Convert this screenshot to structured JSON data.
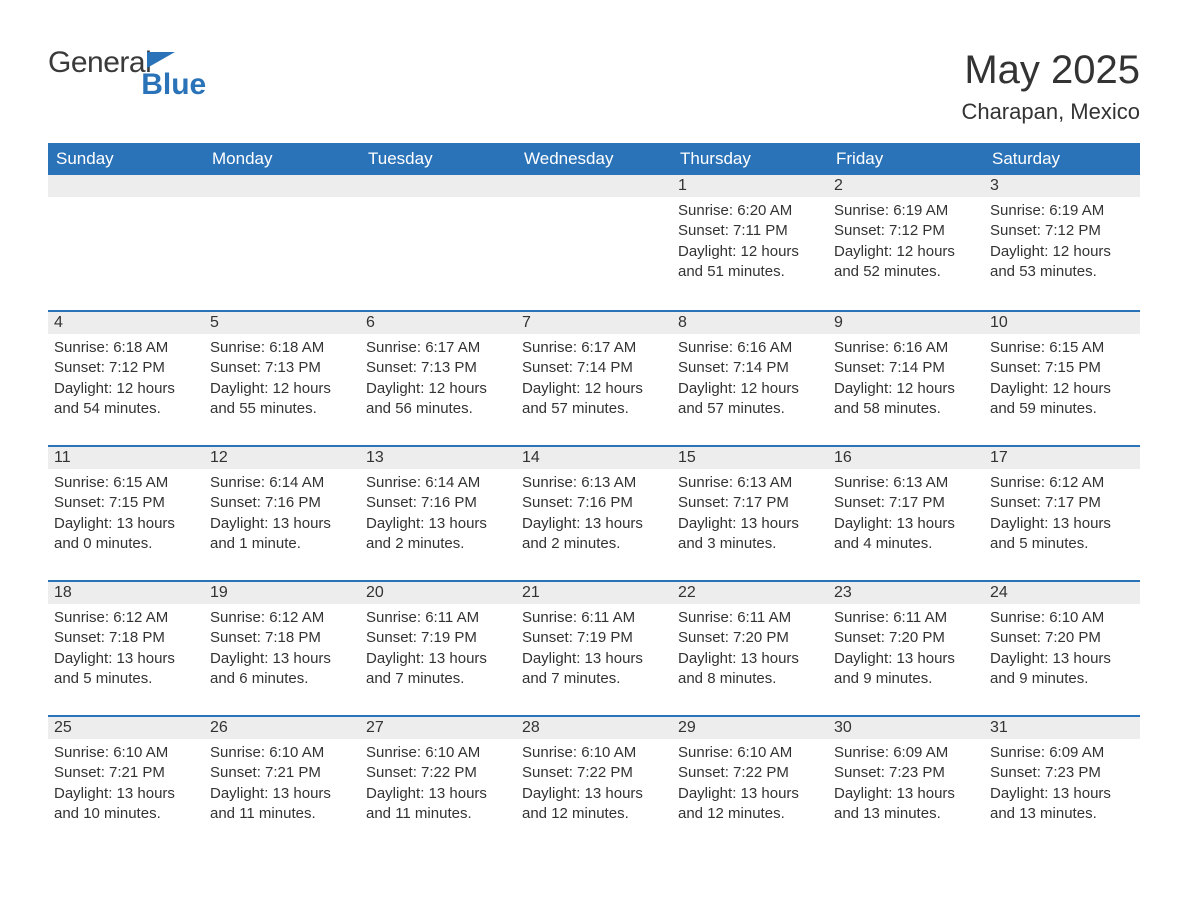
{
  "logo": {
    "general": "General",
    "blue": "Blue"
  },
  "header": {
    "month_title": "May 2025",
    "location": "Charapan, Mexico"
  },
  "colors": {
    "header_bg": "#2b73b8",
    "header_text": "#ffffff",
    "daynum_bg": "#ededed",
    "row_border": "#2b73b8",
    "text": "#333333",
    "background": "#ffffff"
  },
  "calendar": {
    "day_headers": [
      "Sunday",
      "Monday",
      "Tuesday",
      "Wednesday",
      "Thursday",
      "Friday",
      "Saturday"
    ],
    "weeks": [
      [
        {
          "empty": true
        },
        {
          "empty": true
        },
        {
          "empty": true
        },
        {
          "empty": true
        },
        {
          "day": "1",
          "sunrise": "Sunrise: 6:20 AM",
          "sunset": "Sunset: 7:11 PM",
          "daylight": "Daylight: 12 hours and 51 minutes."
        },
        {
          "day": "2",
          "sunrise": "Sunrise: 6:19 AM",
          "sunset": "Sunset: 7:12 PM",
          "daylight": "Daylight: 12 hours and 52 minutes."
        },
        {
          "day": "3",
          "sunrise": "Sunrise: 6:19 AM",
          "sunset": "Sunset: 7:12 PM",
          "daylight": "Daylight: 12 hours and 53 minutes."
        }
      ],
      [
        {
          "day": "4",
          "sunrise": "Sunrise: 6:18 AM",
          "sunset": "Sunset: 7:12 PM",
          "daylight": "Daylight: 12 hours and 54 minutes."
        },
        {
          "day": "5",
          "sunrise": "Sunrise: 6:18 AM",
          "sunset": "Sunset: 7:13 PM",
          "daylight": "Daylight: 12 hours and 55 minutes."
        },
        {
          "day": "6",
          "sunrise": "Sunrise: 6:17 AM",
          "sunset": "Sunset: 7:13 PM",
          "daylight": "Daylight: 12 hours and 56 minutes."
        },
        {
          "day": "7",
          "sunrise": "Sunrise: 6:17 AM",
          "sunset": "Sunset: 7:14 PM",
          "daylight": "Daylight: 12 hours and 57 minutes."
        },
        {
          "day": "8",
          "sunrise": "Sunrise: 6:16 AM",
          "sunset": "Sunset: 7:14 PM",
          "daylight": "Daylight: 12 hours and 57 minutes."
        },
        {
          "day": "9",
          "sunrise": "Sunrise: 6:16 AM",
          "sunset": "Sunset: 7:14 PM",
          "daylight": "Daylight: 12 hours and 58 minutes."
        },
        {
          "day": "10",
          "sunrise": "Sunrise: 6:15 AM",
          "sunset": "Sunset: 7:15 PM",
          "daylight": "Daylight: 12 hours and 59 minutes."
        }
      ],
      [
        {
          "day": "11",
          "sunrise": "Sunrise: 6:15 AM",
          "sunset": "Sunset: 7:15 PM",
          "daylight": "Daylight: 13 hours and 0 minutes."
        },
        {
          "day": "12",
          "sunrise": "Sunrise: 6:14 AM",
          "sunset": "Sunset: 7:16 PM",
          "daylight": "Daylight: 13 hours and 1 minute."
        },
        {
          "day": "13",
          "sunrise": "Sunrise: 6:14 AM",
          "sunset": "Sunset: 7:16 PM",
          "daylight": "Daylight: 13 hours and 2 minutes."
        },
        {
          "day": "14",
          "sunrise": "Sunrise: 6:13 AM",
          "sunset": "Sunset: 7:16 PM",
          "daylight": "Daylight: 13 hours and 2 minutes."
        },
        {
          "day": "15",
          "sunrise": "Sunrise: 6:13 AM",
          "sunset": "Sunset: 7:17 PM",
          "daylight": "Daylight: 13 hours and 3 minutes."
        },
        {
          "day": "16",
          "sunrise": "Sunrise: 6:13 AM",
          "sunset": "Sunset: 7:17 PM",
          "daylight": "Daylight: 13 hours and 4 minutes."
        },
        {
          "day": "17",
          "sunrise": "Sunrise: 6:12 AM",
          "sunset": "Sunset: 7:17 PM",
          "daylight": "Daylight: 13 hours and 5 minutes."
        }
      ],
      [
        {
          "day": "18",
          "sunrise": "Sunrise: 6:12 AM",
          "sunset": "Sunset: 7:18 PM",
          "daylight": "Daylight: 13 hours and 5 minutes."
        },
        {
          "day": "19",
          "sunrise": "Sunrise: 6:12 AM",
          "sunset": "Sunset: 7:18 PM",
          "daylight": "Daylight: 13 hours and 6 minutes."
        },
        {
          "day": "20",
          "sunrise": "Sunrise: 6:11 AM",
          "sunset": "Sunset: 7:19 PM",
          "daylight": "Daylight: 13 hours and 7 minutes."
        },
        {
          "day": "21",
          "sunrise": "Sunrise: 6:11 AM",
          "sunset": "Sunset: 7:19 PM",
          "daylight": "Daylight: 13 hours and 7 minutes."
        },
        {
          "day": "22",
          "sunrise": "Sunrise: 6:11 AM",
          "sunset": "Sunset: 7:20 PM",
          "daylight": "Daylight: 13 hours and 8 minutes."
        },
        {
          "day": "23",
          "sunrise": "Sunrise: 6:11 AM",
          "sunset": "Sunset: 7:20 PM",
          "daylight": "Daylight: 13 hours and 9 minutes."
        },
        {
          "day": "24",
          "sunrise": "Sunrise: 6:10 AM",
          "sunset": "Sunset: 7:20 PM",
          "daylight": "Daylight: 13 hours and 9 minutes."
        }
      ],
      [
        {
          "day": "25",
          "sunrise": "Sunrise: 6:10 AM",
          "sunset": "Sunset: 7:21 PM",
          "daylight": "Daylight: 13 hours and 10 minutes."
        },
        {
          "day": "26",
          "sunrise": "Sunrise: 6:10 AM",
          "sunset": "Sunset: 7:21 PM",
          "daylight": "Daylight: 13 hours and 11 minutes."
        },
        {
          "day": "27",
          "sunrise": "Sunrise: 6:10 AM",
          "sunset": "Sunset: 7:22 PM",
          "daylight": "Daylight: 13 hours and 11 minutes."
        },
        {
          "day": "28",
          "sunrise": "Sunrise: 6:10 AM",
          "sunset": "Sunset: 7:22 PM",
          "daylight": "Daylight: 13 hours and 12 minutes."
        },
        {
          "day": "29",
          "sunrise": "Sunrise: 6:10 AM",
          "sunset": "Sunset: 7:22 PM",
          "daylight": "Daylight: 13 hours and 12 minutes."
        },
        {
          "day": "30",
          "sunrise": "Sunrise: 6:09 AM",
          "sunset": "Sunset: 7:23 PM",
          "daylight": "Daylight: 13 hours and 13 minutes."
        },
        {
          "day": "31",
          "sunrise": "Sunrise: 6:09 AM",
          "sunset": "Sunset: 7:23 PM",
          "daylight": "Daylight: 13 hours and 13 minutes."
        }
      ]
    ]
  }
}
